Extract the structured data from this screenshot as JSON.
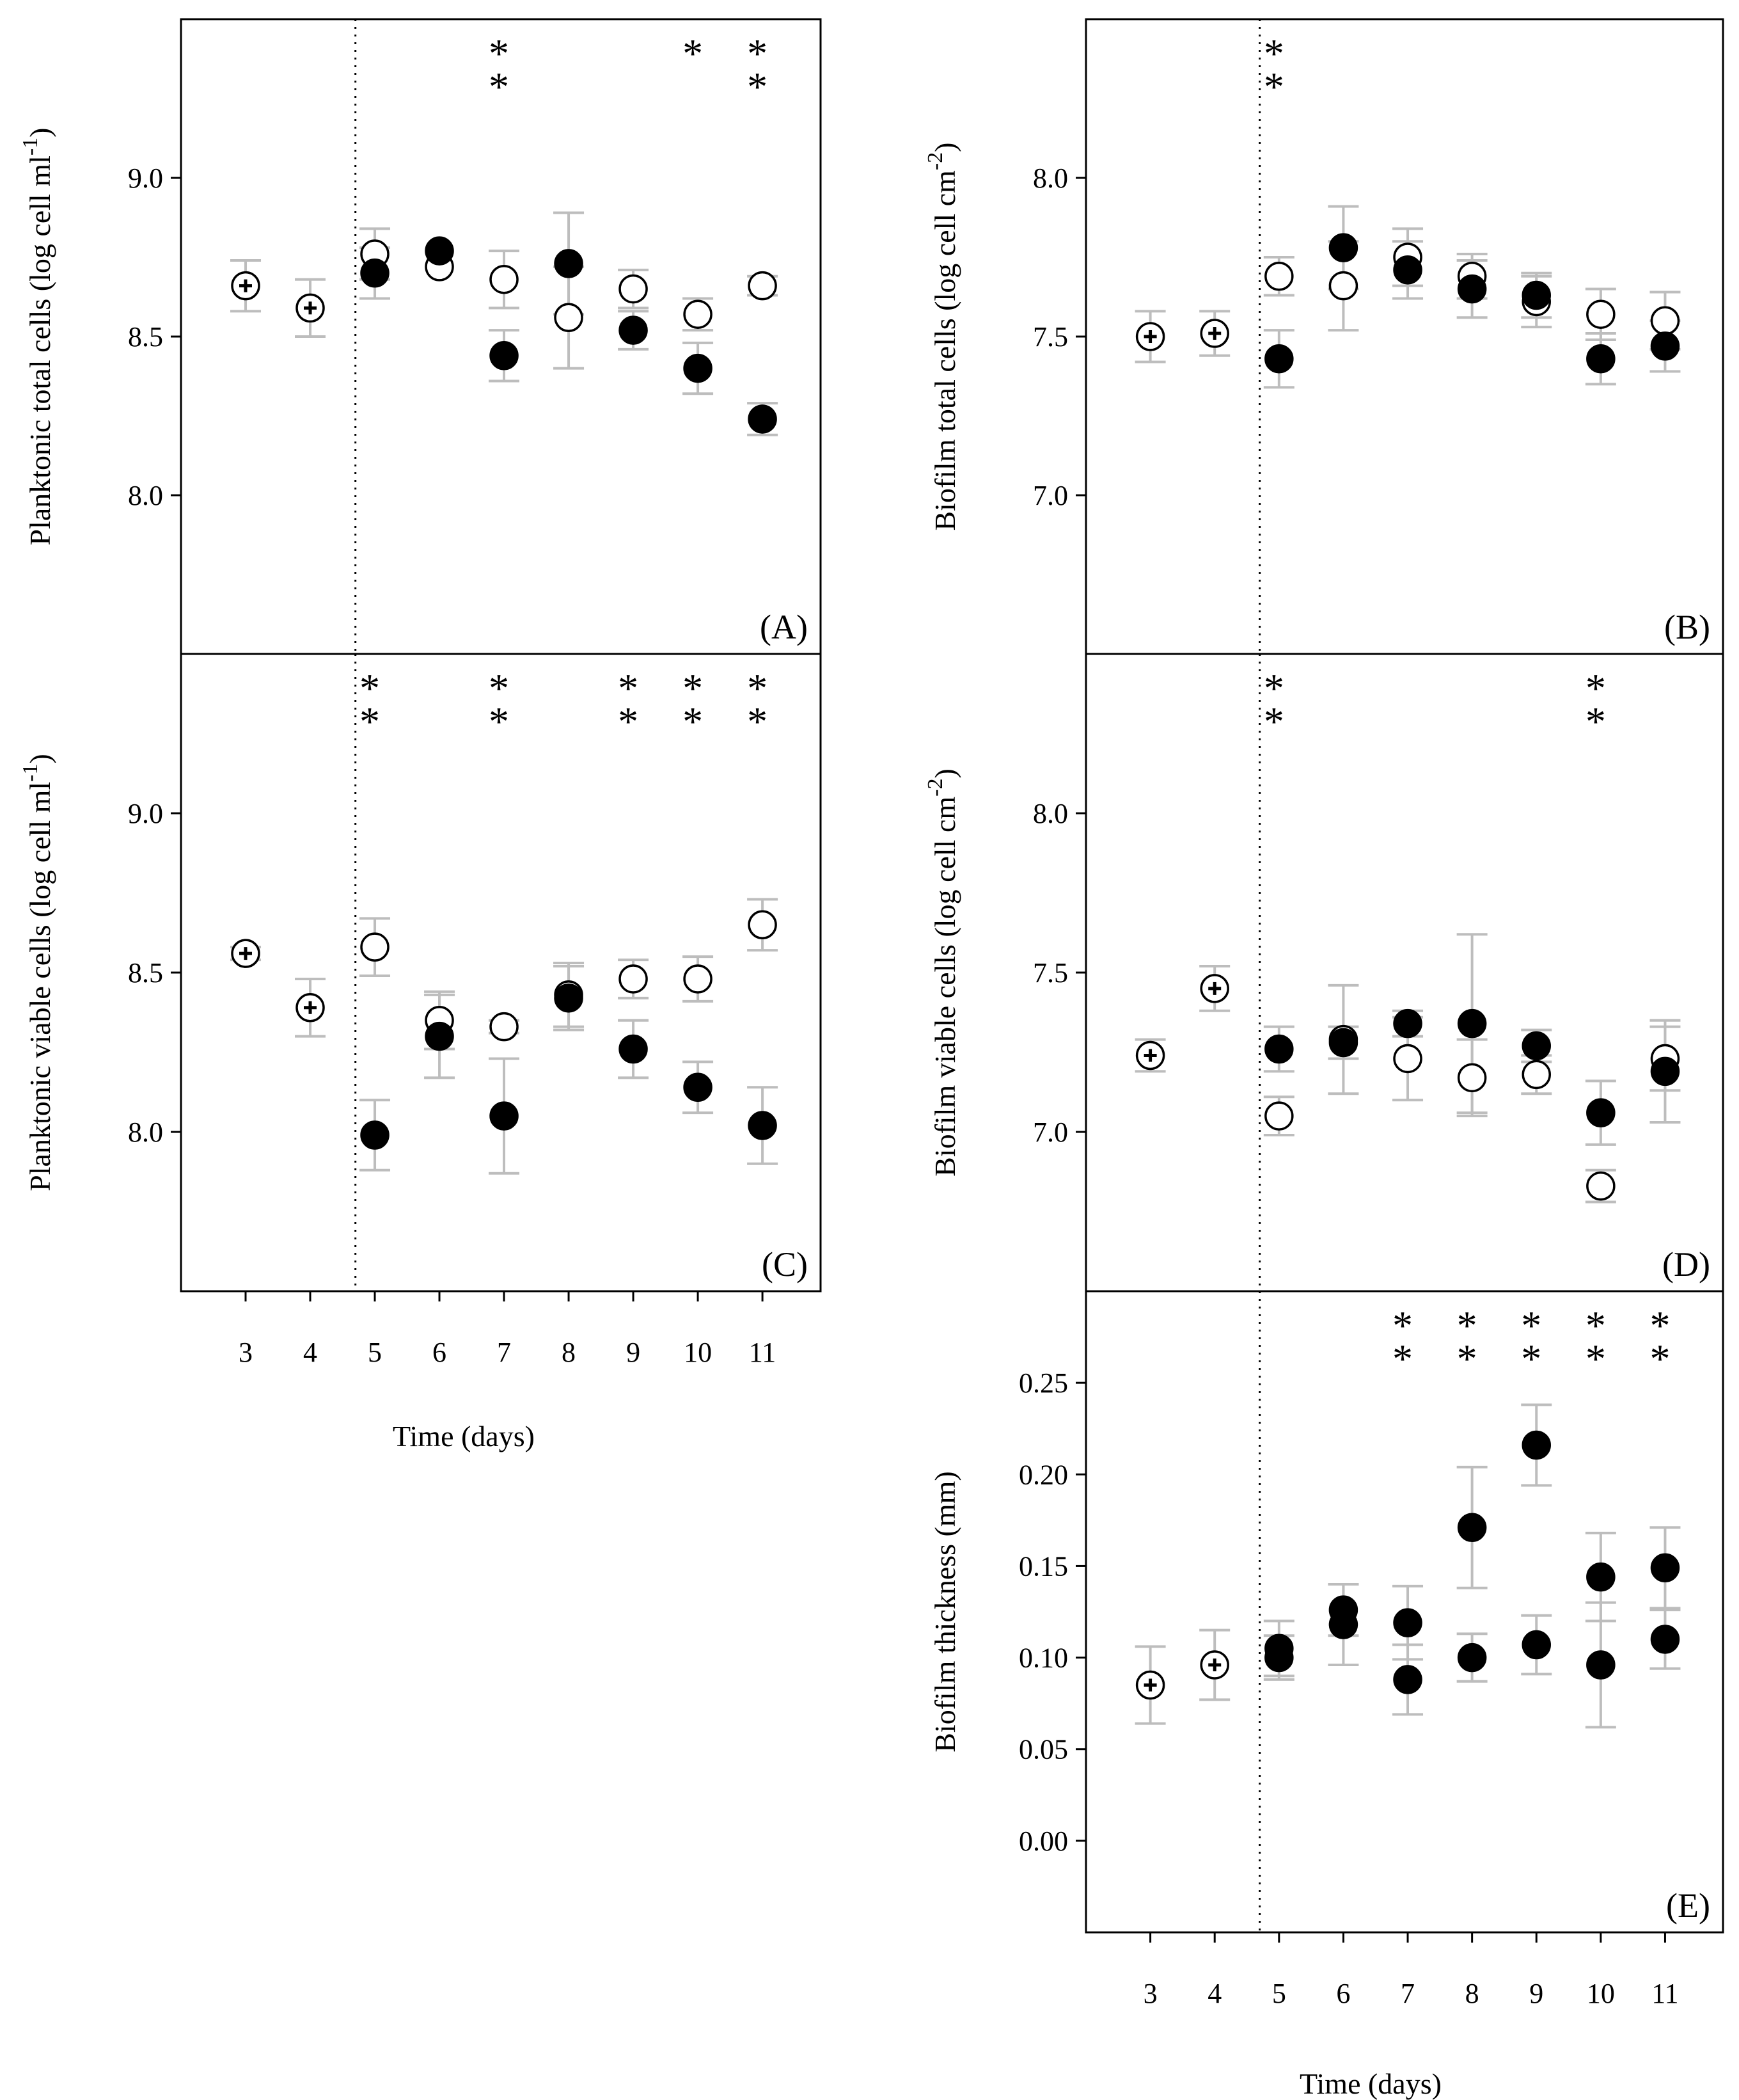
{
  "figure": {
    "x_axis_label": "Time (days)",
    "marker_colors": {
      "open": "#ffffff",
      "filled": "#000000",
      "edge": "#000000",
      "errorbar": "#bdbdbd",
      "frame": "#000000"
    }
  },
  "chart_data": [
    {
      "id": "A",
      "type": "scatter",
      "panel_label": "(A)",
      "ylabel": "Planktonic total cells (log cell ml",
      "ylabel_sup": "-1",
      "ylabel_end": ")",
      "ylim": [
        7.5,
        9.5
      ],
      "yticks": [
        "8.0",
        "8.5",
        "9.0"
      ],
      "xlim": [
        2,
        11.9
      ],
      "xticks": [],
      "xticklabels": [],
      "treatment_start_day": 4.7,
      "initial": [
        {
          "x": 3,
          "y": 8.66,
          "err": 0.08
        },
        {
          "x": 4,
          "y": 8.59,
          "err": 0.09
        }
      ],
      "series": [
        {
          "name": "open",
          "style": "open",
          "points": [
            {
              "x": 5,
              "y": 8.76,
              "err": 0.08
            },
            {
              "x": 6,
              "y": 8.72,
              "err": 0.0
            },
            {
              "x": 7,
              "y": 8.68,
              "err": 0.09
            },
            {
              "x": 8,
              "y": 8.56,
              "err": 0.16
            },
            {
              "x": 9,
              "y": 8.65,
              "err": 0.06
            },
            {
              "x": 10,
              "y": 8.57,
              "err": 0.05
            },
            {
              "x": 11,
              "y": 8.66,
              "err": 0.03
            }
          ]
        },
        {
          "name": "filled",
          "style": "filled",
          "points": [
            {
              "x": 5,
              "y": 8.7,
              "err": 0.08
            },
            {
              "x": 6,
              "y": 8.77,
              "err": 0.0
            },
            {
              "x": 7,
              "y": 8.44,
              "err": 0.08
            },
            {
              "x": 8,
              "y": 8.73,
              "err": 0.16
            },
            {
              "x": 9,
              "y": 8.52,
              "err": 0.06
            },
            {
              "x": 10,
              "y": 8.4,
              "err": 0.08
            },
            {
              "x": 11,
              "y": 8.24,
              "err": 0.05
            }
          ]
        }
      ],
      "significance": [
        {
          "x": 7,
          "marks": [
            "*",
            "*"
          ]
        },
        {
          "x": 10,
          "marks": [
            "*"
          ]
        },
        {
          "x": 11,
          "marks": [
            "*",
            "*"
          ]
        }
      ]
    },
    {
      "id": "B",
      "type": "scatter",
      "panel_label": "(B)",
      "ylabel": "Biofilm total cells (log cell cm",
      "ylabel_sup": "-2",
      "ylabel_end": ")",
      "ylim": [
        6.5,
        8.5
      ],
      "yticks": [
        "7.0",
        "7.5",
        "8.0"
      ],
      "xlim": [
        2,
        11.9
      ],
      "xticks": [],
      "xticklabels": [],
      "treatment_start_day": 4.7,
      "initial": [
        {
          "x": 3,
          "y": 7.5,
          "err": 0.08
        },
        {
          "x": 4,
          "y": 7.51,
          "err": 0.07
        }
      ],
      "series": [
        {
          "name": "open",
          "style": "open",
          "points": [
            {
              "x": 5,
              "y": 7.69,
              "err": 0.06
            },
            {
              "x": 6,
              "y": 7.66,
              "err": 0.14
            },
            {
              "x": 7,
              "y": 7.75,
              "err": 0.09
            },
            {
              "x": 8,
              "y": 7.69,
              "err": 0.07
            },
            {
              "x": 9,
              "y": 7.61,
              "err": 0.08
            },
            {
              "x": 10,
              "y": 7.57,
              "err": 0.08
            },
            {
              "x": 11,
              "y": 7.55,
              "err": 0.09
            }
          ]
        },
        {
          "name": "filled",
          "style": "filled",
          "points": [
            {
              "x": 5,
              "y": 7.43,
              "err": 0.09
            },
            {
              "x": 6,
              "y": 7.78,
              "err": 0.13
            },
            {
              "x": 7,
              "y": 7.71,
              "err": 0.09
            },
            {
              "x": 8,
              "y": 7.65,
              "err": 0.09
            },
            {
              "x": 9,
              "y": 7.63,
              "err": 0.07
            },
            {
              "x": 10,
              "y": 7.43,
              "err": 0.08
            },
            {
              "x": 11,
              "y": 7.47,
              "err": 0.08
            }
          ]
        }
      ],
      "significance": [
        {
          "x": 5,
          "marks": [
            "*",
            "*"
          ]
        }
      ]
    },
    {
      "id": "C",
      "type": "scatter",
      "panel_label": "(C)",
      "ylabel": "Planktonic viable cells (log cell ml",
      "ylabel_sup": "-1",
      "ylabel_end": ")",
      "ylim": [
        7.5,
        9.5
      ],
      "yticks": [
        "8.0",
        "8.5",
        "9.0"
      ],
      "xlim": [
        2,
        11.9
      ],
      "xticks": [
        3,
        4,
        5,
        6,
        7,
        8,
        9,
        10,
        11
      ],
      "xticklabels": [
        "3",
        "4",
        "5",
        "6",
        "7",
        "8",
        "9",
        "10",
        "11"
      ],
      "treatment_start_day": 4.7,
      "initial": [
        {
          "x": 3,
          "y": 8.56,
          "err": 0.02
        },
        {
          "x": 4,
          "y": 8.39,
          "err": 0.09
        }
      ],
      "series": [
        {
          "name": "open",
          "style": "open",
          "points": [
            {
              "x": 5,
              "y": 8.58,
              "err": 0.09
            },
            {
              "x": 6,
              "y": 8.35,
              "err": 0.09
            },
            {
              "x": 7,
              "y": 8.33,
              "err": 0.02
            },
            {
              "x": 8,
              "y": 8.43,
              "err": 0.1
            },
            {
              "x": 9,
              "y": 8.48,
              "err": 0.06
            },
            {
              "x": 10,
              "y": 8.48,
              "err": 0.07
            },
            {
              "x": 11,
              "y": 8.65,
              "err": 0.08
            }
          ]
        },
        {
          "name": "filled",
          "style": "filled",
          "points": [
            {
              "x": 5,
              "y": 7.99,
              "err": 0.11
            },
            {
              "x": 6,
              "y": 8.3,
              "err": 0.13
            },
            {
              "x": 7,
              "y": 8.05,
              "err": 0.18
            },
            {
              "x": 8,
              "y": 8.42,
              "err": 0.1
            },
            {
              "x": 9,
              "y": 8.26,
              "err": 0.09
            },
            {
              "x": 10,
              "y": 8.14,
              "err": 0.08
            },
            {
              "x": 11,
              "y": 8.02,
              "err": 0.12
            }
          ]
        }
      ],
      "significance": [
        {
          "x": 5,
          "marks": [
            "*",
            "*"
          ]
        },
        {
          "x": 7,
          "marks": [
            "*",
            "*"
          ]
        },
        {
          "x": 9,
          "marks": [
            "*",
            "*"
          ]
        },
        {
          "x": 10,
          "marks": [
            "*",
            "*"
          ]
        },
        {
          "x": 11,
          "marks": [
            "*",
            "*"
          ]
        }
      ]
    },
    {
      "id": "D",
      "type": "scatter",
      "panel_label": "(D)",
      "ylabel": "Biofilm viable cells (log cell cm",
      "ylabel_sup": "-2",
      "ylabel_end": ")",
      "ylim": [
        6.5,
        8.5
      ],
      "yticks": [
        "7.0",
        "7.5",
        "8.0"
      ],
      "xlim": [
        2,
        11.9
      ],
      "xticks": [],
      "xticklabels": [],
      "treatment_start_day": 4.7,
      "initial": [
        {
          "x": 3,
          "y": 7.24,
          "err": 0.05
        },
        {
          "x": 4,
          "y": 7.45,
          "err": 0.07
        }
      ],
      "series": [
        {
          "name": "open",
          "style": "open",
          "points": [
            {
              "x": 5,
              "y": 7.05,
              "err": 0.06
            },
            {
              "x": 6,
              "y": 7.29,
              "err": 0.17
            },
            {
              "x": 7,
              "y": 7.23,
              "err": 0.13
            },
            {
              "x": 8,
              "y": 7.17,
              "err": 0.12
            },
            {
              "x": 9,
              "y": 7.18,
              "err": 0.06
            },
            {
              "x": 10,
              "y": 6.83,
              "err": 0.05
            },
            {
              "x": 11,
              "y": 7.23,
              "err": 0.1
            }
          ]
        },
        {
          "name": "filled",
          "style": "filled",
          "points": [
            {
              "x": 5,
              "y": 7.26,
              "err": 0.07
            },
            {
              "x": 6,
              "y": 7.28,
              "err": 0.05
            },
            {
              "x": 7,
              "y": 7.34,
              "err": 0.04
            },
            {
              "x": 8,
              "y": 7.34,
              "err": 0.28
            },
            {
              "x": 9,
              "y": 7.27,
              "err": 0.05
            },
            {
              "x": 10,
              "y": 7.06,
              "err": 0.1
            },
            {
              "x": 11,
              "y": 7.19,
              "err": 0.16
            }
          ]
        }
      ],
      "significance": [
        {
          "x": 5,
          "marks": [
            "*",
            "*"
          ]
        },
        {
          "x": 10,
          "marks": [
            "*",
            "*"
          ]
        }
      ]
    },
    {
      "id": "E",
      "type": "scatter",
      "panel_label": "(E)",
      "ylabel": "Biofilm thickness (mm)",
      "ylabel_sup": "",
      "ylabel_end": "",
      "ylim": [
        -0.05,
        0.3
      ],
      "yticks": [
        "0.00",
        "0.05",
        "0.10",
        "0.15",
        "0.20",
        "0.25"
      ],
      "xlim": [
        2,
        11.9
      ],
      "xticks": [
        3,
        4,
        5,
        6,
        7,
        8,
        9,
        10,
        11
      ],
      "xticklabels": [
        "3",
        "4",
        "5",
        "6",
        "7",
        "8",
        "9",
        "10",
        "11"
      ],
      "treatment_start_day": 4.7,
      "initial": [
        {
          "x": 3,
          "y": 0.085,
          "err": 0.021
        },
        {
          "x": 4,
          "y": 0.096,
          "err": 0.019
        }
      ],
      "series": [
        {
          "name": "lower",
          "style": "filled",
          "points": [
            {
              "x": 5,
              "y": 0.1,
              "err": 0.012
            },
            {
              "x": 6,
              "y": 0.118,
              "err": 0.022
            },
            {
              "x": 7,
              "y": 0.088,
              "err": 0.019
            },
            {
              "x": 8,
              "y": 0.1,
              "err": 0.013
            },
            {
              "x": 9,
              "y": 0.107,
              "err": 0.016
            },
            {
              "x": 10,
              "y": 0.096,
              "err": 0.034
            },
            {
              "x": 11,
              "y": 0.11,
              "err": 0.016
            }
          ]
        },
        {
          "name": "upper",
          "style": "filled",
          "points": [
            {
              "x": 5,
              "y": 0.105,
              "err": 0.015
            },
            {
              "x": 6,
              "y": 0.126,
              "err": 0.014
            },
            {
              "x": 7,
              "y": 0.119,
              "err": 0.02
            },
            {
              "x": 8,
              "y": 0.171,
              "err": 0.033
            },
            {
              "x": 9,
              "y": 0.216,
              "err": 0.022
            },
            {
              "x": 10,
              "y": 0.144,
              "err": 0.024
            },
            {
              "x": 11,
              "y": 0.149,
              "err": 0.022
            }
          ]
        }
      ],
      "significance": [
        {
          "x": 7,
          "marks": [
            "*",
            "*"
          ]
        },
        {
          "x": 8,
          "marks": [
            "*",
            "*"
          ]
        },
        {
          "x": 9,
          "marks": [
            "*",
            "*"
          ]
        },
        {
          "x": 10,
          "marks": [
            "*",
            "*"
          ]
        },
        {
          "x": 11,
          "marks": [
            "*",
            "*"
          ]
        }
      ]
    }
  ]
}
